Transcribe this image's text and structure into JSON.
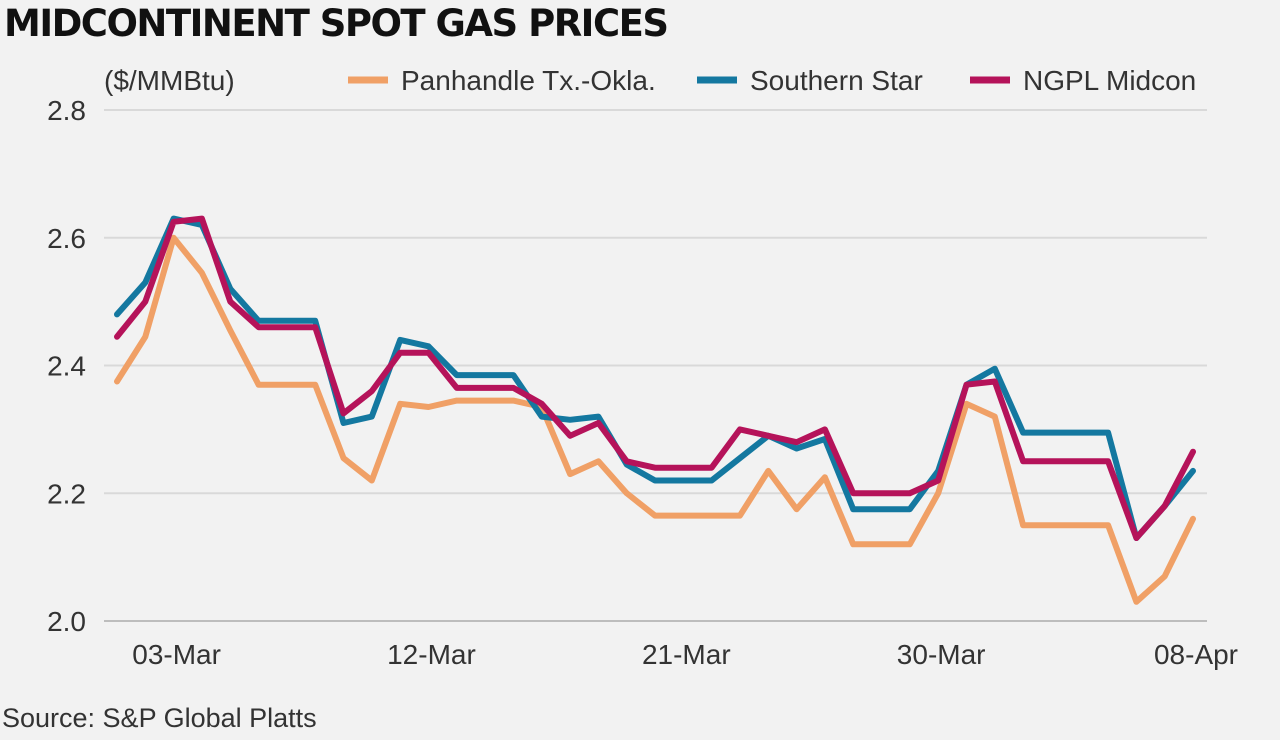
{
  "chart_data": {
    "type": "line",
    "title": "MIDCONTINENT SPOT GAS PRICES",
    "unit_label": "($/MMBtu)",
    "source": "Source: S&P Global Platts",
    "ylim": [
      2.0,
      2.8
    ],
    "yticks": [
      "2.8",
      "2.6",
      "2.4",
      "2.2",
      "2.0"
    ],
    "ytick_values": [
      2.8,
      2.6,
      2.4,
      2.2,
      2.0
    ],
    "xtick_labels": [
      "03-Mar",
      "12-Mar",
      "21-Mar",
      "30-Mar",
      "08-Apr"
    ],
    "xtick_indices": [
      2,
      11,
      20,
      29,
      38
    ],
    "grid": true,
    "legend_position": "top",
    "series": [
      {
        "name": "Panhandle Tx.-Okla.",
        "color": "#f0a066",
        "values": [
          2.375,
          2.445,
          2.6,
          2.545,
          2.455,
          2.37,
          2.37,
          2.37,
          2.255,
          2.22,
          2.34,
          2.335,
          2.345,
          2.345,
          2.345,
          2.335,
          2.23,
          2.25,
          2.2,
          2.165,
          2.165,
          2.165,
          2.165,
          2.235,
          2.175,
          2.225,
          2.12,
          2.12,
          2.12,
          2.2,
          2.34,
          2.32,
          2.15,
          2.15,
          2.15,
          2.15,
          2.03,
          2.07,
          2.16
        ]
      },
      {
        "name": "Southern Star",
        "color": "#1478a0",
        "values": [
          2.48,
          2.53,
          2.63,
          2.62,
          2.52,
          2.47,
          2.47,
          2.47,
          2.31,
          2.32,
          2.44,
          2.43,
          2.385,
          2.385,
          2.385,
          2.32,
          2.315,
          2.32,
          2.245,
          2.22,
          2.22,
          2.22,
          2.255,
          2.29,
          2.27,
          2.285,
          2.175,
          2.175,
          2.175,
          2.235,
          2.37,
          2.395,
          2.295,
          2.295,
          2.295,
          2.295,
          2.13,
          2.18,
          2.235
        ]
      },
      {
        "name": "NGPL Midcon",
        "color": "#b5135a",
        "values": [
          2.445,
          2.5,
          2.625,
          2.63,
          2.5,
          2.46,
          2.46,
          2.46,
          2.325,
          2.36,
          2.42,
          2.42,
          2.365,
          2.365,
          2.365,
          2.34,
          2.29,
          2.31,
          2.25,
          2.24,
          2.24,
          2.24,
          2.3,
          2.29,
          2.28,
          2.3,
          2.2,
          2.2,
          2.2,
          2.22,
          2.37,
          2.375,
          2.25,
          2.25,
          2.25,
          2.25,
          2.13,
          2.18,
          2.265
        ]
      }
    ]
  }
}
